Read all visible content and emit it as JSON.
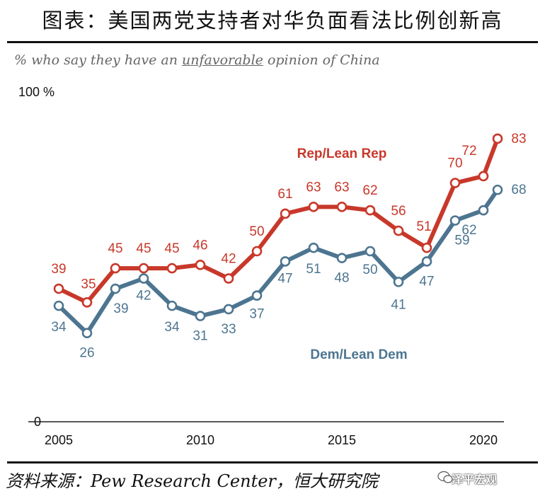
{
  "header": {
    "title": "图表：美国两党支持者对华负面看法比例创新高"
  },
  "subtitle": {
    "prefix": "% who say they have an ",
    "emphasis": "unfavorable",
    "suffix": " opinion of China"
  },
  "footer": {
    "source": "资料来源：Pew Research Center，恒大研究院",
    "watermark": "泽平宏观"
  },
  "colors": {
    "rep": "#c8382a",
    "dem": "#4d7590"
  },
  "chart_data": {
    "type": "line",
    "title": "% who say they have an unfavorable opinion of China",
    "ylim": [
      0,
      100
    ],
    "y_ticks": [
      "0",
      "100 %"
    ],
    "x_ticks": [
      "2005",
      "2010",
      "2015",
      "2020"
    ],
    "series": [
      {
        "name": "Rep/Lean Rep",
        "points": [
          {
            "x": 2005,
            "y": 39
          },
          {
            "x": 2006,
            "y": 35
          },
          {
            "x": 2007,
            "y": 45
          },
          {
            "x": 2008,
            "y": 45
          },
          {
            "x": 2009,
            "y": 45
          },
          {
            "x": 2010,
            "y": 46
          },
          {
            "x": 2011,
            "y": 42
          },
          {
            "x": 2012,
            "y": 50
          },
          {
            "x": 2013,
            "y": 61
          },
          {
            "x": 2014,
            "y": 63
          },
          {
            "x": 2015,
            "y": 63
          },
          {
            "x": 2016,
            "y": 62
          },
          {
            "x": 2017,
            "y": 56
          },
          {
            "x": 2018,
            "y": 51
          },
          {
            "x": 2019,
            "y": 70
          },
          {
            "x": 2020,
            "y": 72
          },
          {
            "x": 2020.5,
            "y": 83
          }
        ]
      },
      {
        "name": "Dem/Lean Dem",
        "points": [
          {
            "x": 2005,
            "y": 34
          },
          {
            "x": 2006,
            "y": 26
          },
          {
            "x": 2007,
            "y": 39
          },
          {
            "x": 2008,
            "y": 42
          },
          {
            "x": 2009,
            "y": 34
          },
          {
            "x": 2010,
            "y": 31
          },
          {
            "x": 2011,
            "y": 33
          },
          {
            "x": 2012,
            "y": 37
          },
          {
            "x": 2013,
            "y": 47
          },
          {
            "x": 2014,
            "y": 51
          },
          {
            "x": 2015,
            "y": 48
          },
          {
            "x": 2016,
            "y": 50
          },
          {
            "x": 2017,
            "y": 41
          },
          {
            "x": 2018,
            "y": 47
          },
          {
            "x": 2019,
            "y": 59
          },
          {
            "x": 2020,
            "y": 62
          },
          {
            "x": 2020.5,
            "y": 68
          }
        ]
      }
    ]
  }
}
